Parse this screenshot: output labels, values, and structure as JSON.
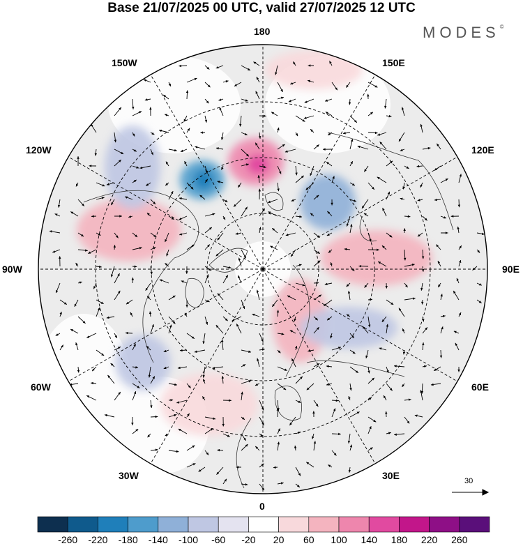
{
  "title": "Base 21/07/2025 00 UTC, valid 27/07/2025 12 UTC",
  "brand": "MODES",
  "brand_mark": "©",
  "longitude_labels": {
    "lon_180": "180",
    "lon_150e": "150E",
    "lon_120e": "120E",
    "lon_90e": "90E",
    "lon_60e": "60E",
    "lon_30e": "30E",
    "lon_0": "0",
    "lon_30w": "30W",
    "lon_60w": "60W",
    "lon_90w": "90W",
    "lon_120w": "120W",
    "lon_150w": "150W"
  },
  "wind_scale_label": "30",
  "colorbar": {
    "labels": [
      "-260",
      "-220",
      "-180",
      "-140",
      "-100",
      "-60",
      "-20",
      "20",
      "60",
      "100",
      "140",
      "180",
      "220",
      "260"
    ],
    "colors": [
      "#0d2f4f",
      "#0f5a8c",
      "#1f7fba",
      "#4e9ccc",
      "#8fb0d8",
      "#bfc7e3",
      "#e4e3f0",
      "#ffffff",
      "#f8d9dc",
      "#f4b4bf",
      "#ee86ad",
      "#e14aa0",
      "#c2168a",
      "#8e0f86",
      "#5a0f7a"
    ]
  },
  "anomalies": [
    {
      "name": "anomaly-blue-alaska",
      "color": "#4e9ccc"
    },
    {
      "name": "anomaly-pink-east-siberia",
      "color": "#ee86ad"
    },
    {
      "name": "anomaly-pink-pacific",
      "color": "#f8d9dc"
    },
    {
      "name": "anomaly-pink-canada",
      "color": "#f4b4bf"
    },
    {
      "name": "anomaly-pink-siberia",
      "color": "#f4b4bf"
    },
    {
      "name": "anomaly-blue-scandinavia",
      "color": "#8fb0d8"
    },
    {
      "name": "anomaly-pink-atlantic",
      "color": "#f8d9dc"
    },
    {
      "name": "anomaly-pink-europe",
      "color": "#f4b4bf"
    },
    {
      "name": "anomaly-blue-atlantic",
      "color": "#bfc7e3"
    },
    {
      "name": "anomaly-blue-west-siberia",
      "color": "#bfc7e3"
    },
    {
      "name": "anomaly-blue-canada",
      "color": "#bfc7e3"
    }
  ]
}
